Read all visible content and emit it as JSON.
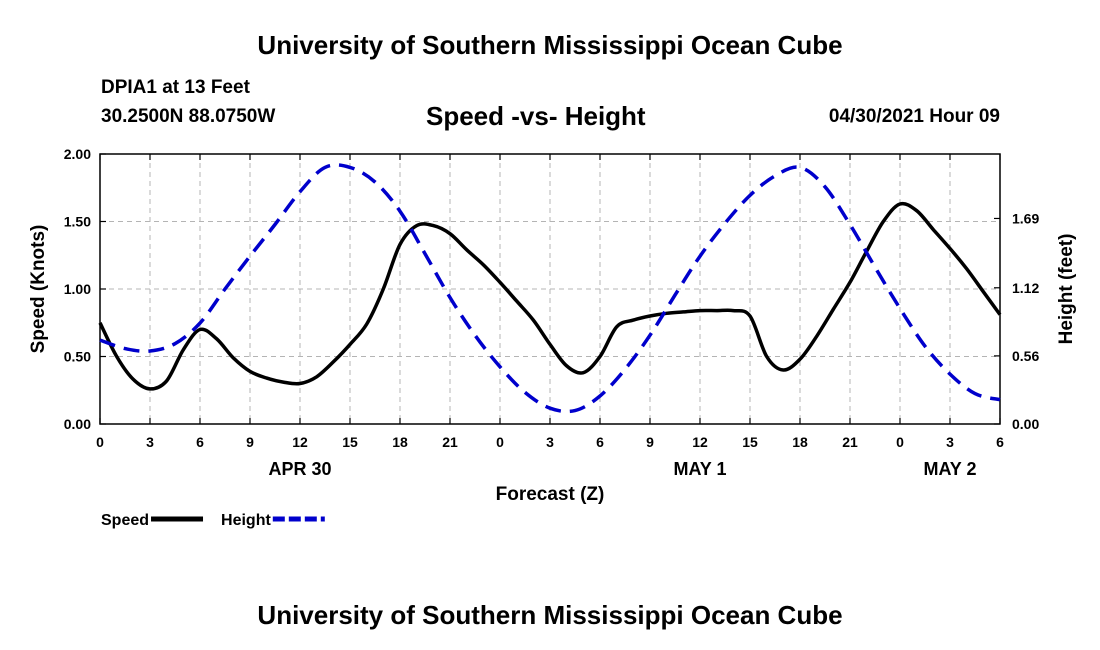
{
  "page": {
    "title_top": "University of Southern Mississippi Ocean Cube",
    "title_bottom": "University of Southern Mississippi Ocean Cube",
    "station": "DPIA1 at 13 Feet",
    "coordinates": "30.2500N  88.0750W",
    "subtitle": "Speed -vs- Height",
    "datetime": "04/30/2021 Hour 09"
  },
  "chart_data": {
    "type": "line",
    "xlabel": "Forecast (Z)",
    "ylabel_left": "Speed (Knots)",
    "ylabel_right": "Height (feet)",
    "xlim": [
      0,
      54
    ],
    "ylim_left": [
      0,
      2
    ],
    "ylim_right": [
      0,
      2.22
    ],
    "x_ticks": [
      0,
      3,
      6,
      9,
      12,
      15,
      18,
      21,
      24,
      27,
      30,
      33,
      36,
      39,
      42,
      45,
      48,
      51,
      54
    ],
    "x_tick_labels": [
      "0",
      "3",
      "6",
      "9",
      "12",
      "15",
      "18",
      "21",
      "0",
      "3",
      "6",
      "9",
      "12",
      "15",
      "18",
      "21",
      "0",
      "3",
      "6"
    ],
    "date_labels": [
      {
        "x": 12,
        "label": "APR 30"
      },
      {
        "x": 36,
        "label": "MAY 1"
      },
      {
        "x": 51,
        "label": "MAY 2"
      }
    ],
    "y_left_ticks": [
      0,
      0.5,
      1,
      1.5,
      2
    ],
    "y_left_tick_labels": [
      "0.00",
      "0.50",
      "1.00",
      "1.50",
      "2.00"
    ],
    "y_right_ticks": [
      0,
      0.56,
      1.12,
      1.69
    ],
    "y_right_tick_labels": [
      "0.00",
      "0.56",
      "1.12",
      "1.69"
    ],
    "grid": true,
    "legend_position": "bottom-left",
    "series": [
      {
        "name": "Speed",
        "axis": "left",
        "color": "#000000",
        "dash": "solid",
        "x": [
          0,
          1,
          2,
          3,
          4,
          5,
          6,
          7,
          8,
          9,
          10,
          11,
          12,
          13,
          14,
          15,
          16,
          17,
          18,
          19,
          20,
          21,
          22,
          23,
          24,
          25,
          26,
          27,
          28,
          29,
          30,
          31,
          32,
          33,
          34,
          35,
          36,
          37,
          38,
          39,
          40,
          41,
          42,
          43,
          44,
          45,
          46,
          47,
          48,
          49,
          50,
          51,
          52,
          53,
          54
        ],
        "y": [
          0.75,
          0.5,
          0.33,
          0.26,
          0.32,
          0.55,
          0.7,
          0.63,
          0.49,
          0.39,
          0.34,
          0.31,
          0.3,
          0.35,
          0.46,
          0.59,
          0.74,
          1.0,
          1.33,
          1.47,
          1.47,
          1.41,
          1.29,
          1.18,
          1.05,
          0.91,
          0.77,
          0.59,
          0.43,
          0.38,
          0.5,
          0.72,
          0.77,
          0.8,
          0.82,
          0.83,
          0.84,
          0.84,
          0.84,
          0.8,
          0.5,
          0.4,
          0.48,
          0.65,
          0.85,
          1.05,
          1.28,
          1.5,
          1.63,
          1.58,
          1.44,
          1.3,
          1.15,
          0.98,
          0.81
        ]
      },
      {
        "name": "Height",
        "axis": "right",
        "color": "#0000cc",
        "dash": "dashed",
        "x": [
          0,
          1.5,
          3,
          4.5,
          6,
          7.5,
          9,
          10.5,
          12,
          13.5,
          15,
          16.5,
          18,
          19.5,
          21,
          22.5,
          24,
          25.5,
          27,
          28.5,
          30,
          31.5,
          33,
          34.5,
          36,
          37.5,
          39,
          40.5,
          42,
          43.5,
          45,
          46.5,
          48,
          49.5,
          51,
          52.5,
          54
        ],
        "y": [
          0.69,
          0.62,
          0.6,
          0.66,
          0.83,
          1.11,
          1.38,
          1.64,
          1.91,
          2.11,
          2.11,
          1.99,
          1.75,
          1.4,
          1.04,
          0.73,
          0.47,
          0.26,
          0.13,
          0.11,
          0.23,
          0.45,
          0.73,
          1.06,
          1.38,
          1.65,
          1.88,
          2.04,
          2.11,
          1.95,
          1.64,
          1.29,
          0.95,
          0.64,
          0.41,
          0.25,
          0.2
        ]
      }
    ]
  }
}
